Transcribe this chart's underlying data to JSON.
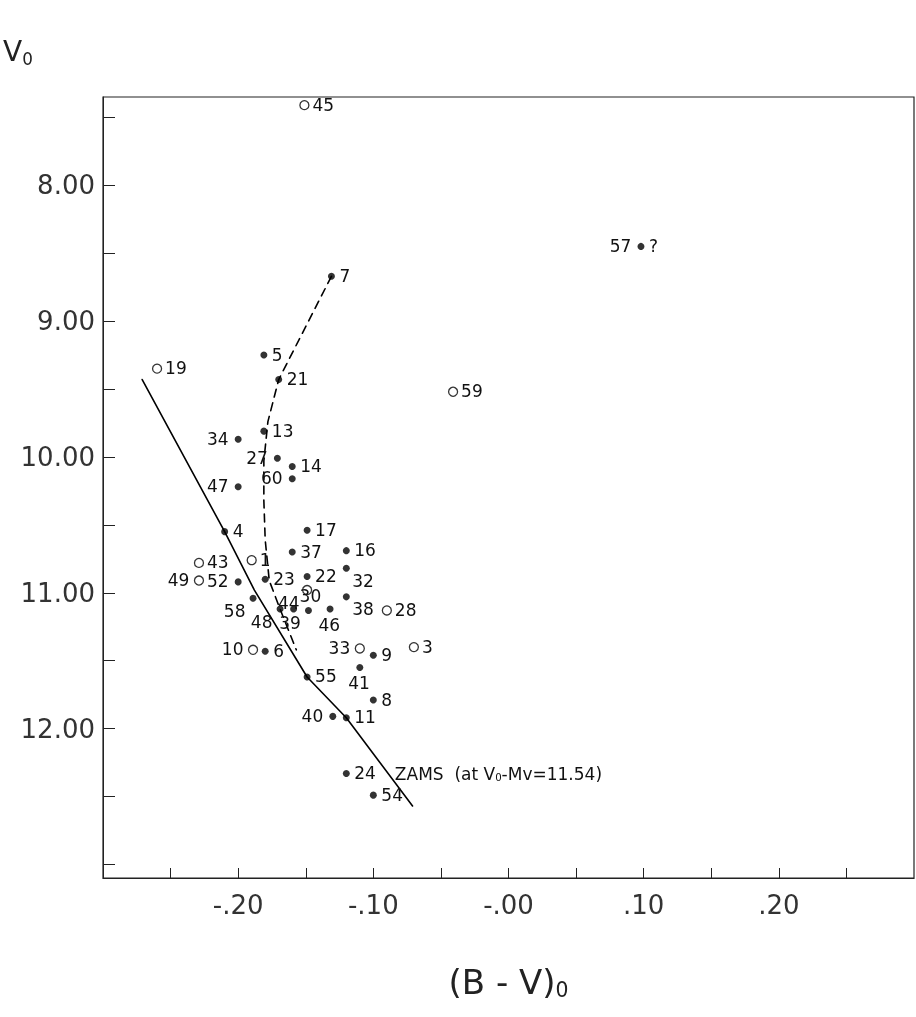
{
  "chart_data": {
    "type": "scatter",
    "xlabel": "(B - V)$_{0}$",
    "ylabel": "V$_{0}$",
    "xlim": [
      -0.3,
      0.3
    ],
    "ylim": [
      13.1,
      7.35
    ],
    "xticks": [
      {
        "value": -0.25,
        "label": null
      },
      {
        "value": -0.2,
        "label": "-.20"
      },
      {
        "value": -0.15,
        "label": null
      },
      {
        "value": -0.1,
        "label": "-.10"
      },
      {
        "value": -0.05,
        "label": null
      },
      {
        "value": 0,
        "label": "-.00"
      },
      {
        "value": 0.05,
        "label": null
      },
      {
        "value": 0.1,
        "label": ".10"
      },
      {
        "value": 0.15,
        "label": null
      },
      {
        "value": 0.2,
        "label": ".20"
      },
      {
        "value": 0.25,
        "label": null
      }
    ],
    "yticks": [
      {
        "value": 7.5,
        "label": null
      },
      {
        "value": 8,
        "label": "8.00"
      },
      {
        "value": 8.5,
        "label": null
      },
      {
        "value": 9,
        "label": "9.00"
      },
      {
        "value": 9.5,
        "label": null
      },
      {
        "value": 10,
        "label": "10.00"
      },
      {
        "value": 10.5,
        "label": null
      },
      {
        "value": 11,
        "label": "11.00"
      },
      {
        "value": 11.5,
        "label": null
      },
      {
        "value": 12,
        "label": "12.00"
      },
      {
        "value": 12.5,
        "label": null
      },
      {
        "value": 13,
        "label": null
      }
    ],
    "marker": "circle",
    "series": [
      {
        "color": "#000000",
        "x": [
          -0.131,
          -0.181,
          -0.17,
          -0.181,
          -0.2,
          -0.171,
          -0.16,
          -0.16,
          -0.2,
          -0.149,
          -0.21,
          -0.16,
          -0.149,
          -0.12,
          -0.12,
          -0.12,
          -0.132,
          -0.148,
          -0.18,
          -0.169,
          -0.159,
          -0.2,
          -0.189,
          -0.18,
          -0.149,
          -0.1,
          -0.11,
          -0.1,
          -0.13,
          -0.12,
          -0.12,
          -0.1,
          0.098
        ],
        "values": [
          8.67,
          9.25,
          9.43,
          9.81,
          9.87,
          10.01,
          10.07,
          10.16,
          10.22,
          10.54,
          10.55,
          10.7,
          10.88,
          10.69,
          10.82,
          11.03,
          11.12,
          11.13,
          10.9,
          11.12,
          11.12,
          10.92,
          11.04,
          11.43,
          11.62,
          11.46,
          11.55,
          11.79,
          11.91,
          11.92,
          12.33,
          12.49,
          8.45
        ]
      },
      {
        "color": "#000000",
        "x": [
          -0.149,
          -0.09,
          -0.229,
          -0.229,
          -0.19,
          -0.189,
          -0.11,
          -0.07,
          -0.151,
          -0.26,
          -0.041
        ],
        "values": [
          10.98,
          11.13,
          10.78,
          10.91,
          10.76,
          11.42,
          11.41,
          11.4,
          7.41,
          9.35,
          9.52
        ]
      },
      {
        "type": "line",
        "color": "#000000",
        "line_style": "dashed",
        "marker": "none",
        "x": [
          -0.131,
          -0.17,
          -0.178,
          -0.181,
          -0.181,
          -0.18,
          -0.177,
          -0.169,
          -0.157
        ],
        "values": [
          8.67,
          9.43,
          9.74,
          10.03,
          10.32,
          10.61,
          10.91,
          11.12,
          11.42
        ]
      },
      {
        "type": "line",
        "color": "#000000",
        "line_style": "solid",
        "marker": "none",
        "x": [
          -0.271,
          -0.21,
          -0.188,
          -0.149,
          -0.12,
          -0.071
        ],
        "values": [
          9.43,
          10.55,
          10.98,
          11.62,
          11.92,
          12.57
        ]
      }
    ],
    "annotations": [
      {
        "text": "ZAMS  (at V$_{0}$-Mv=11.54)",
        "x": -0.09,
        "y": 12.33
      },
      {
        "text": "?",
        "x": 0.098,
        "y": 8.45
      },
      {
        "text": "7",
        "x": -0.131,
        "y": 8.67
      },
      {
        "text": "5",
        "x": -0.181,
        "y": 9.25
      },
      {
        "text": "21",
        "x": -0.17,
        "y": 9.43
      },
      {
        "text": "13",
        "x": -0.181,
        "y": 9.81
      },
      {
        "text": "34",
        "x": -0.2,
        "y": 9.87
      },
      {
        "text": "27",
        "x": -0.171,
        "y": 10.01
      },
      {
        "text": "14",
        "x": -0.16,
        "y": 10.07
      },
      {
        "text": "60",
        "x": -0.16,
        "y": 10.16
      },
      {
        "text": "47",
        "x": -0.2,
        "y": 10.22
      },
      {
        "text": "17",
        "x": -0.149,
        "y": 10.54
      },
      {
        "text": "4",
        "x": -0.21,
        "y": 10.55
      },
      {
        "text": "37",
        "x": -0.16,
        "y": 10.7
      },
      {
        "text": "22",
        "x": -0.149,
        "y": 10.88
      },
      {
        "text": "16",
        "x": -0.12,
        "y": 10.69
      },
      {
        "text": "32",
        "x": -0.12,
        "y": 10.82
      },
      {
        "text": "38",
        "x": -0.12,
        "y": 11.03
      },
      {
        "text": "46",
        "x": -0.132,
        "y": 11.12
      },
      {
        "text": "39",
        "x": -0.148,
        "y": 11.13
      },
      {
        "text": "23",
        "x": -0.18,
        "y": 10.9
      },
      {
        "text": "48",
        "x": -0.169,
        "y": 11.12
      },
      {
        "text": "30",
        "x": -0.159,
        "y": 11.12
      },
      {
        "text": "52",
        "x": -0.2,
        "y": 10.92
      },
      {
        "text": "58",
        "x": -0.189,
        "y": 11.04
      },
      {
        "text": "6",
        "x": -0.18,
        "y": 11.43
      },
      {
        "text": "55",
        "x": -0.149,
        "y": 11.62
      },
      {
        "text": "9",
        "x": -0.1,
        "y": 11.46
      },
      {
        "text": "41",
        "x": -0.11,
        "y": 11.55
      },
      {
        "text": "8",
        "x": -0.1,
        "y": 11.79
      },
      {
        "text": "40",
        "x": -0.13,
        "y": 11.91
      },
      {
        "text": "11",
        "x": -0.12,
        "y": 11.92
      },
      {
        "text": "24",
        "x": -0.12,
        "y": 12.33
      },
      {
        "text": "54",
        "x": -0.1,
        "y": 12.49
      },
      {
        "text": "57",
        "x": 0.098,
        "y": 8.45
      },
      {
        "text": "44",
        "x": -0.149,
        "y": 10.98
      },
      {
        "text": "28",
        "x": -0.09,
        "y": 11.13
      },
      {
        "text": "43",
        "x": -0.229,
        "y": 10.78
      },
      {
        "text": "49",
        "x": -0.229,
        "y": 10.91
      },
      {
        "text": "1",
        "x": -0.19,
        "y": 10.76
      },
      {
        "text": "10",
        "x": -0.189,
        "y": 11.42
      },
      {
        "text": "33",
        "x": -0.11,
        "y": 11.41
      },
      {
        "text": "3",
        "x": -0.07,
        "y": 11.4
      },
      {
        "text": "45",
        "x": -0.151,
        "y": 7.41
      },
      {
        "text": "19",
        "x": -0.26,
        "y": 9.35
      },
      {
        "text": "59",
        "x": -0.041,
        "y": 9.52
      }
    ]
  }
}
